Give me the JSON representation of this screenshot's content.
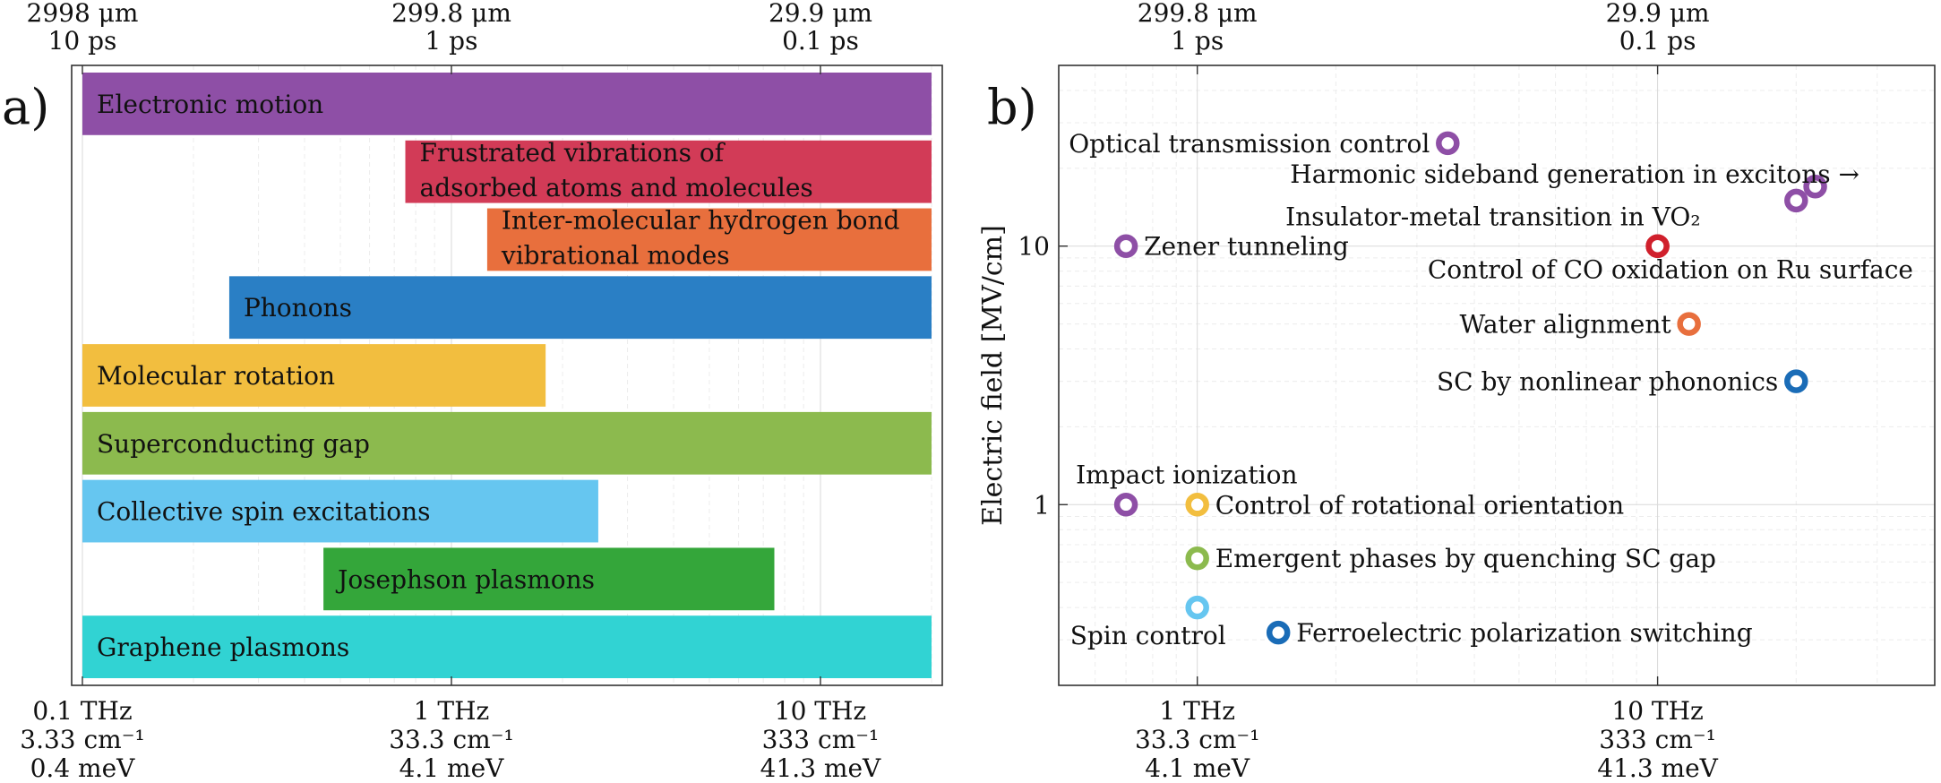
{
  "colors": {
    "purple": "#8e4fa6",
    "red": "#d23b57",
    "orange": "#e86f3d",
    "blue": "#2a7fc5",
    "yellow": "#f2be3f",
    "green": "#8cba4e",
    "lightblue": "#66c6f0",
    "darkgreen": "#34a63a",
    "cyan": "#31d3d3",
    "crimson": "#d0202c",
    "navy": "#1a6cb7"
  },
  "panel_labels": {
    "a": "a)",
    "b": "b)"
  },
  "chart_data": [
    {
      "type": "bar",
      "orientation": "horizontal",
      "title": "",
      "x_scale": "log",
      "x_unit": "THz",
      "xlim": [
        0.1,
        20
      ],
      "bottom_ticks": [
        {
          "value": 0.1,
          "lines": [
            "0.1 THz",
            "3.33 cm⁻¹",
            "0.4 meV"
          ]
        },
        {
          "value": 1,
          "lines": [
            "1 THz",
            "33.3 cm⁻¹",
            "4.1 meV"
          ]
        },
        {
          "value": 10,
          "lines": [
            "10 THz",
            "333 cm⁻¹",
            "41.3 meV"
          ]
        }
      ],
      "top_ticks": [
        {
          "value": 0.1,
          "lines": [
            "2998 μm",
            "10 ps"
          ]
        },
        {
          "value": 1,
          "lines": [
            "299.8 μm",
            "1 ps"
          ]
        },
        {
          "value": 10,
          "lines": [
            "29.9 μm",
            "0.1 ps"
          ]
        }
      ],
      "bars": [
        {
          "label": [
            "Electronic motion"
          ],
          "start": 0.1,
          "end": 20,
          "color": "#8e4fa6"
        },
        {
          "label": [
            "Frustrated vibrations of",
            "adsorbed atoms and molecules"
          ],
          "start": 0.75,
          "end": 20,
          "color": "#d23b57"
        },
        {
          "label": [
            "Inter-molecular hydrogen bond",
            "vibrational modes"
          ],
          "start": 1.25,
          "end": 20,
          "color": "#e86f3d"
        },
        {
          "label": [
            "Phonons"
          ],
          "start": 0.25,
          "end": 20,
          "color": "#2a7fc5"
        },
        {
          "label": [
            "Molecular rotation"
          ],
          "start": 0.1,
          "end": 1.8,
          "color": "#f2be3f"
        },
        {
          "label": [
            "Superconducting gap"
          ],
          "start": 0.1,
          "end": 20,
          "color": "#8cba4e"
        },
        {
          "label": [
            "Collective spin excitations"
          ],
          "start": 0.1,
          "end": 2.5,
          "color": "#66c6f0"
        },
        {
          "label": [
            "Josephson plasmons"
          ],
          "start": 0.45,
          "end": 7.5,
          "color": "#34a63a"
        },
        {
          "label": [
            "Graphene plasmons"
          ],
          "start": 0.1,
          "end": 20,
          "color": "#31d3d3"
        }
      ]
    },
    {
      "type": "scatter",
      "title": "",
      "x_scale": "log",
      "y_scale": "log",
      "x_unit": "THz",
      "ylabel": "Electric field [MV/cm]",
      "xlim": [
        0.5,
        40
      ],
      "ylim": [
        0.2,
        50
      ],
      "bottom_ticks": [
        {
          "value": 1,
          "lines": [
            "1 THz",
            "33.3 cm⁻¹",
            "4.1 meV"
          ]
        },
        {
          "value": 10,
          "lines": [
            "10 THz",
            "333 cm⁻¹",
            "41.3 meV"
          ]
        }
      ],
      "top_ticks": [
        {
          "value": 1,
          "lines": [
            "299.8 μm",
            "1 ps"
          ]
        },
        {
          "value": 10,
          "lines": [
            "29.9 μm",
            "0.1 ps"
          ]
        }
      ],
      "y_ticks": [
        {
          "value": 1,
          "label": "1"
        },
        {
          "value": 10,
          "label": "10"
        }
      ],
      "points": [
        {
          "label": "Optical transmission control",
          "x": 3.5,
          "y": 25,
          "color": "#8e4fa6",
          "label_side": "left"
        },
        {
          "label": "Harmonic sideband generation in excitons →",
          "x": 22,
          "y": 17,
          "color": "#8e4fa6",
          "label_side": "left"
        },
        {
          "label": "",
          "x": 20,
          "y": 15,
          "color": "#8e4fa6",
          "label_side": "none"
        },
        {
          "label": "Insulator-metal transition in VO₂",
          "x": 10,
          "y": 10,
          "color": "#d0202c",
          "label_side": "above-left"
        },
        {
          "label": "Control of CO oxidation on Ru surface",
          "x": 10,
          "y": 10,
          "color": "#d0202c",
          "label_side": "below-right"
        },
        {
          "label": "Zener tunneling",
          "x": 0.7,
          "y": 10,
          "color": "#8e4fa6",
          "label_side": "right"
        },
        {
          "label": "Water alignment",
          "x": 11.7,
          "y": 5,
          "color": "#e86f3d",
          "label_side": "left"
        },
        {
          "label": "SC by nonlinear phononics",
          "x": 20,
          "y": 3,
          "color": "#1a6cb7",
          "label_side": "left"
        },
        {
          "label": "Impact ionization",
          "x": 0.7,
          "y": 1,
          "color": "#8e4fa6",
          "label_side": "above"
        },
        {
          "label": "Control of rotational orientation",
          "x": 1,
          "y": 1,
          "color": "#f2be3f",
          "label_side": "right"
        },
        {
          "label": "Emergent phases by quenching SC gap",
          "x": 1,
          "y": 0.62,
          "color": "#8cba4e",
          "label_side": "right"
        },
        {
          "label": "Spin control",
          "x": 1,
          "y": 0.4,
          "color": "#66c6f0",
          "label_side": "below"
        },
        {
          "label": "Ferroelectric polarization switching",
          "x": 1.5,
          "y": 0.32,
          "color": "#1a6cb7",
          "label_side": "right"
        }
      ]
    }
  ]
}
